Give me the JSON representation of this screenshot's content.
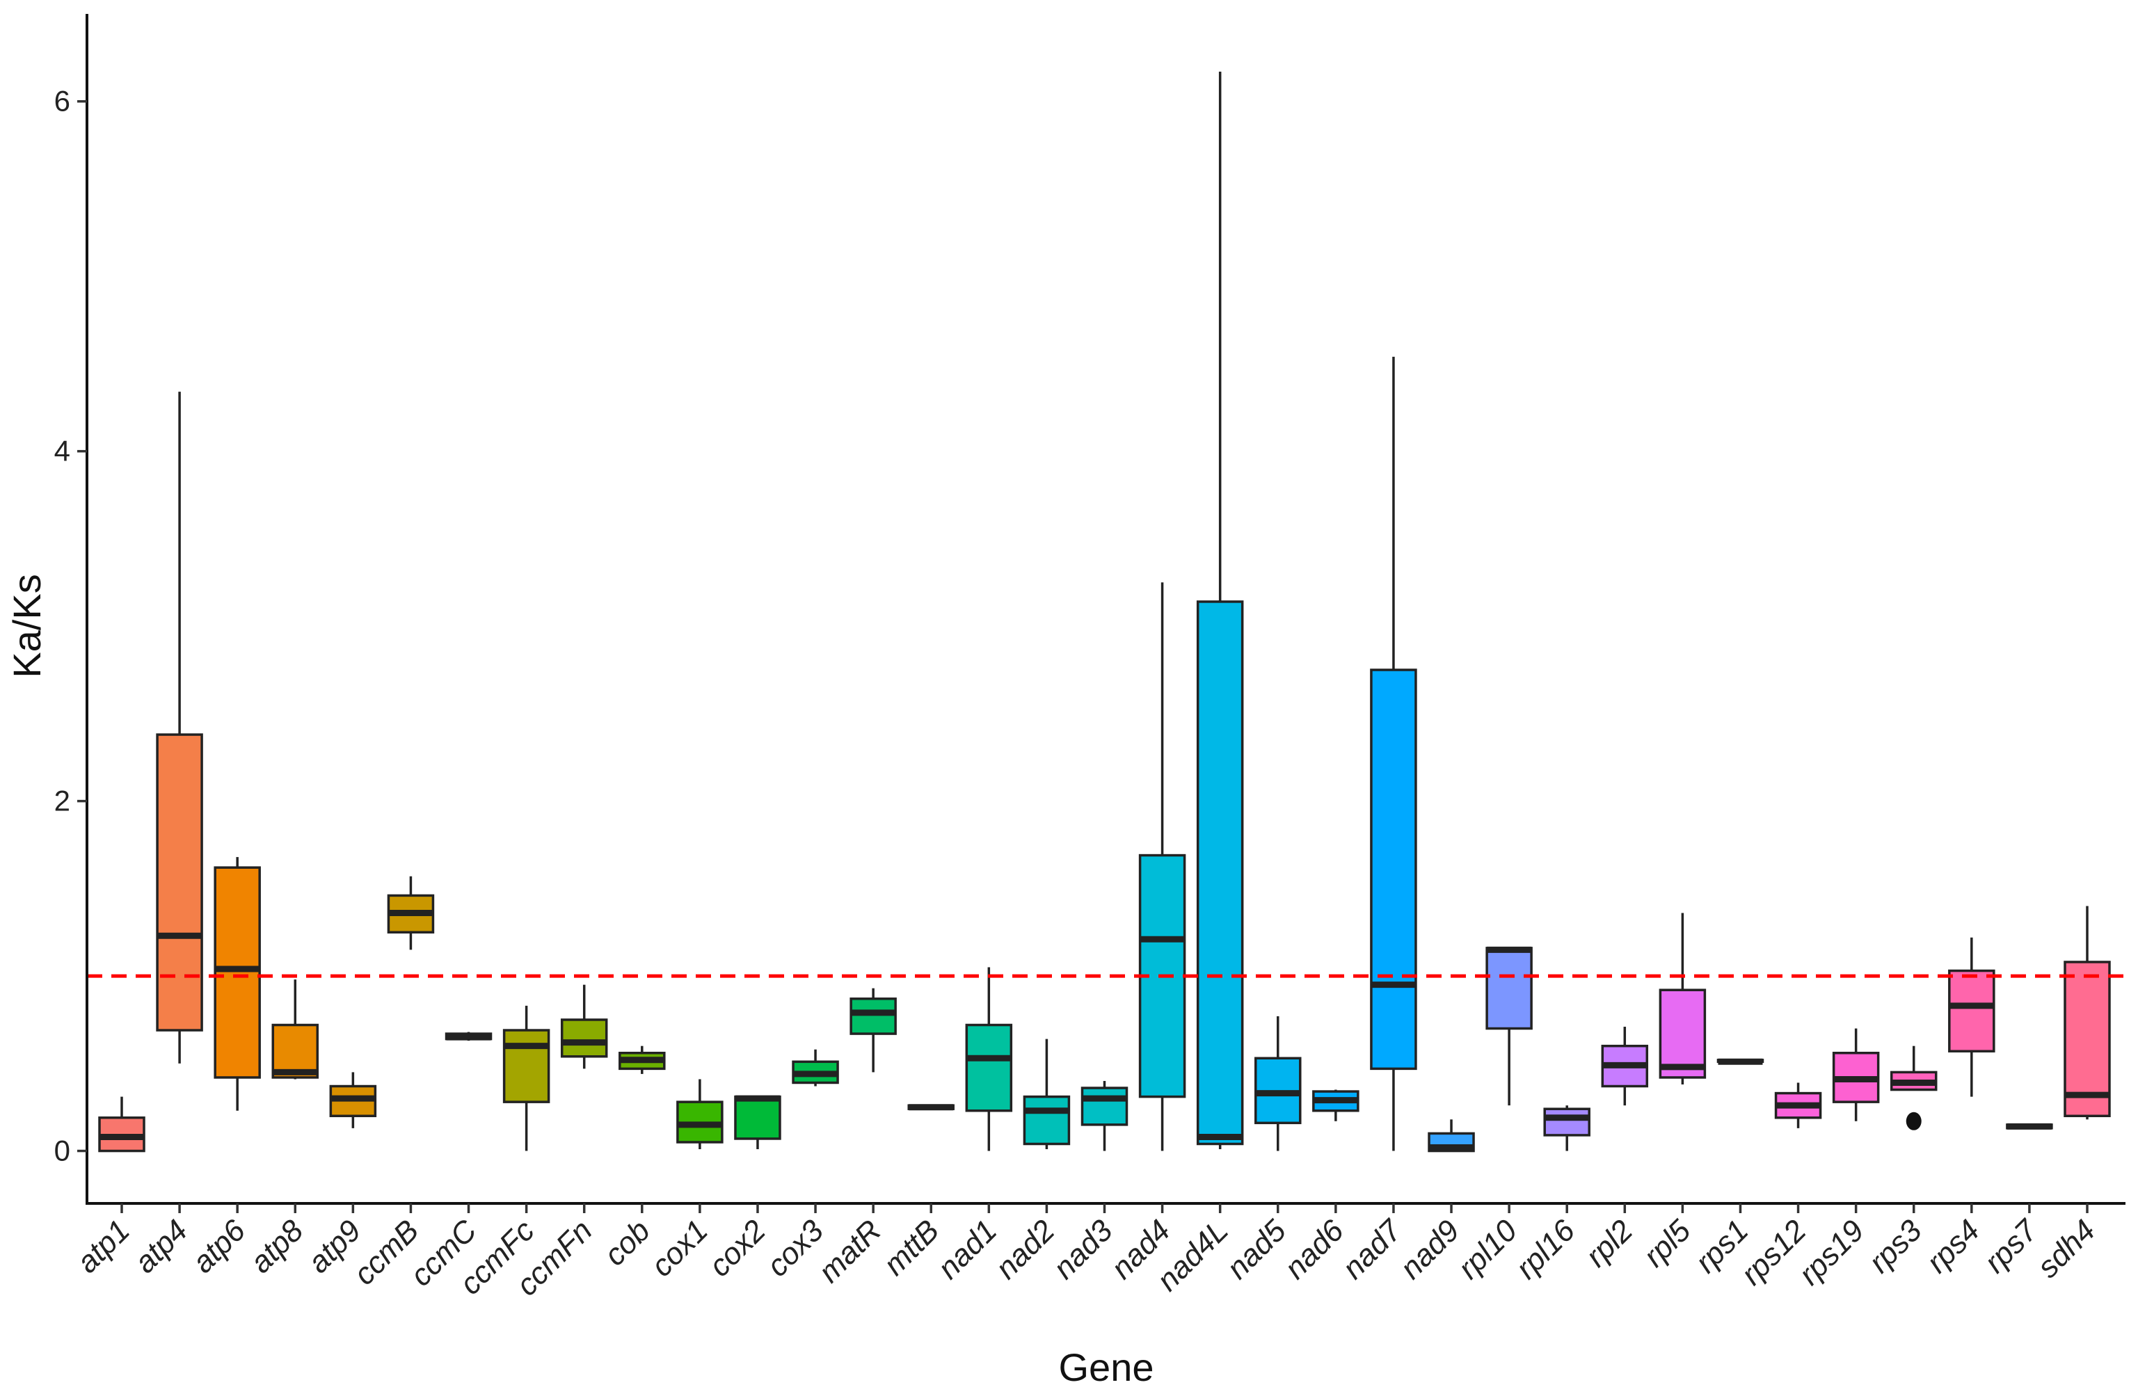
{
  "chart_data": {
    "type": "box",
    "xlabel": "Gene",
    "ylabel": "Ka/Ks",
    "ylim": [
      -0.3,
      6.5
    ],
    "yticks": [
      0,
      2,
      4,
      6
    ],
    "reference_line": {
      "y": 1,
      "color": "#ff0000",
      "style": "dashed"
    },
    "grid": false,
    "legend": "none",
    "series": [
      {
        "gene": "atp1",
        "min": 0.0,
        "q1": 0.0,
        "median": 0.08,
        "q3": 0.19,
        "max": 0.31,
        "color": "#F8766D"
      },
      {
        "gene": "atp4",
        "min": 0.5,
        "q1": 0.69,
        "median": 1.23,
        "q3": 2.38,
        "max": 4.34,
        "color": "#F47F49"
      },
      {
        "gene": "atp6",
        "min": 0.23,
        "q1": 0.42,
        "median": 1.04,
        "q3": 1.62,
        "max": 1.68,
        "color": "#F08400"
      },
      {
        "gene": "atp8",
        "min": 0.41,
        "q1": 0.42,
        "median": 0.45,
        "q3": 0.72,
        "max": 0.98,
        "color": "#E88A00"
      },
      {
        "gene": "atp9",
        "min": 0.13,
        "q1": 0.2,
        "median": 0.3,
        "q3": 0.37,
        "max": 0.45,
        "color": "#D89000"
      },
      {
        "gene": "ccmB",
        "min": 1.15,
        "q1": 1.25,
        "median": 1.36,
        "q3": 1.46,
        "max": 1.57,
        "color": "#C99700"
      },
      {
        "gene": "ccmC",
        "min": 0.63,
        "q1": 0.64,
        "median": 0.65,
        "q3": 0.67,
        "max": 0.68,
        "color": "#BA9E00"
      },
      {
        "gene": "ccmFc",
        "min": 0.0,
        "q1": 0.28,
        "median": 0.6,
        "q3": 0.69,
        "max": 0.83,
        "color": "#A3A500"
      },
      {
        "gene": "ccmFn",
        "min": 0.47,
        "q1": 0.54,
        "median": 0.62,
        "q3": 0.75,
        "max": 0.95,
        "color": "#8AAB00"
      },
      {
        "gene": "cob",
        "min": 0.44,
        "q1": 0.47,
        "median": 0.52,
        "q3": 0.56,
        "max": 0.6,
        "color": "#6BB100"
      },
      {
        "gene": "cox1",
        "min": 0.01,
        "q1": 0.05,
        "median": 0.15,
        "q3": 0.28,
        "max": 0.41,
        "color": "#39B600"
      },
      {
        "gene": "cox2",
        "min": 0.01,
        "q1": 0.07,
        "median": 0.3,
        "q3": 0.31,
        "max": 0.31,
        "color": "#00BA38"
      },
      {
        "gene": "cox3",
        "min": 0.37,
        "q1": 0.39,
        "median": 0.44,
        "q3": 0.51,
        "max": 0.58,
        "color": "#00BC4C"
      },
      {
        "gene": "matR",
        "min": 0.45,
        "q1": 0.67,
        "median": 0.79,
        "q3": 0.87,
        "max": 0.93,
        "color": "#00BE67"
      },
      {
        "gene": "mttB",
        "min": 0.24,
        "q1": 0.24,
        "median": 0.25,
        "q3": 0.26,
        "max": 0.26,
        "color": "#00C08B"
      },
      {
        "gene": "nad1",
        "min": 0.0,
        "q1": 0.23,
        "median": 0.53,
        "q3": 0.72,
        "max": 1.05,
        "color": "#00C19F"
      },
      {
        "gene": "nad2",
        "min": 0.01,
        "q1": 0.04,
        "median": 0.23,
        "q3": 0.31,
        "max": 0.64,
        "color": "#00C0B8"
      },
      {
        "gene": "nad3",
        "min": 0.0,
        "q1": 0.15,
        "median": 0.3,
        "q3": 0.36,
        "max": 0.4,
        "color": "#00BFC4"
      },
      {
        "gene": "nad4",
        "min": 0.0,
        "q1": 0.31,
        "median": 1.21,
        "q3": 1.69,
        "max": 3.25,
        "color": "#00BCD8"
      },
      {
        "gene": "nad4L",
        "min": 0.01,
        "q1": 0.04,
        "median": 0.08,
        "q3": 3.14,
        "max": 6.17,
        "color": "#00B8E7"
      },
      {
        "gene": "nad5",
        "min": 0.0,
        "q1": 0.16,
        "median": 0.33,
        "q3": 0.53,
        "max": 0.77,
        "color": "#00B4F0"
      },
      {
        "gene": "nad6",
        "min": 0.17,
        "q1": 0.23,
        "median": 0.29,
        "q3": 0.34,
        "max": 0.35,
        "color": "#00ACFC"
      },
      {
        "gene": "nad7",
        "min": 0.0,
        "q1": 0.47,
        "median": 0.95,
        "q3": 2.75,
        "max": 4.54,
        "color": "#00A9FF"
      },
      {
        "gene": "nad9",
        "min": 0.0,
        "q1": 0.0,
        "median": 0.02,
        "q3": 0.1,
        "max": 0.18,
        "color": "#35A2FF"
      },
      {
        "gene": "rpl10",
        "min": 0.26,
        "q1": 0.7,
        "median": 1.15,
        "q3": 1.16,
        "max": 1.16,
        "color": "#7C96FF"
      },
      {
        "gene": "rpl16",
        "min": 0.0,
        "q1": 0.09,
        "median": 0.19,
        "q3": 0.24,
        "max": 0.26,
        "color": "#A58AFF"
      },
      {
        "gene": "rpl2",
        "min": 0.26,
        "q1": 0.37,
        "median": 0.49,
        "q3": 0.6,
        "max": 0.71,
        "color": "#C77CFF"
      },
      {
        "gene": "rpl5",
        "min": 0.38,
        "q1": 0.42,
        "median": 0.48,
        "q3": 0.92,
        "max": 1.36,
        "color": "#E76BF3"
      },
      {
        "gene": "rps1",
        "min": 0.51,
        "q1": 0.51,
        "median": 0.51,
        "q3": 0.52,
        "max": 0.52,
        "color": "#F564E3"
      },
      {
        "gene": "rps12",
        "min": 0.13,
        "q1": 0.19,
        "median": 0.26,
        "q3": 0.33,
        "max": 0.39,
        "color": "#FA62DB"
      },
      {
        "gene": "rps19",
        "min": 0.17,
        "q1": 0.28,
        "median": 0.41,
        "q3": 0.56,
        "max": 0.7,
        "color": "#FD61D1"
      },
      {
        "gene": "rps3",
        "min": 0.35,
        "q1": 0.35,
        "median": 0.39,
        "q3": 0.45,
        "max": 0.6,
        "outliers": [
          0.17
        ],
        "color": "#FF62BC"
      },
      {
        "gene": "rps4",
        "min": 0.31,
        "q1": 0.57,
        "median": 0.83,
        "q3": 1.03,
        "max": 1.22,
        "color": "#FF65AC"
      },
      {
        "gene": "rps7",
        "min": 0.13,
        "q1": 0.13,
        "median": 0.14,
        "q3": 0.15,
        "max": 0.15,
        "color": "#FF699C"
      },
      {
        "gene": "sdh4",
        "min": 0.18,
        "q1": 0.2,
        "median": 0.32,
        "q3": 1.08,
        "max": 1.4,
        "color": "#FF6C91"
      }
    ]
  }
}
